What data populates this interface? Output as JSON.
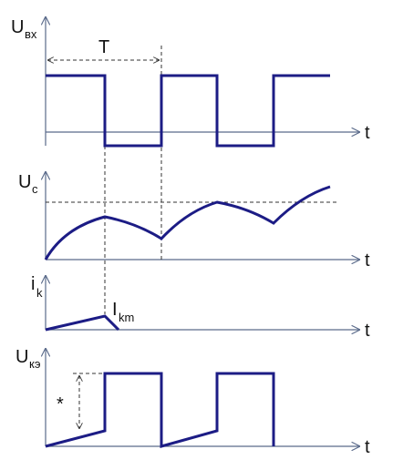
{
  "labels": {
    "u_in": {
      "main": "U",
      "sub": "вх"
    },
    "period": "T",
    "t_axis": [
      "t",
      "t",
      "t",
      "t"
    ],
    "u_c": {
      "main": "U",
      "sub": "c"
    },
    "i_k": {
      "main": "i",
      "sub": "k"
    },
    "i_km": {
      "main": "I",
      "sub": "km"
    },
    "u_ke": {
      "main": "U",
      "sub": "кэ"
    },
    "star": "*"
  }
}
